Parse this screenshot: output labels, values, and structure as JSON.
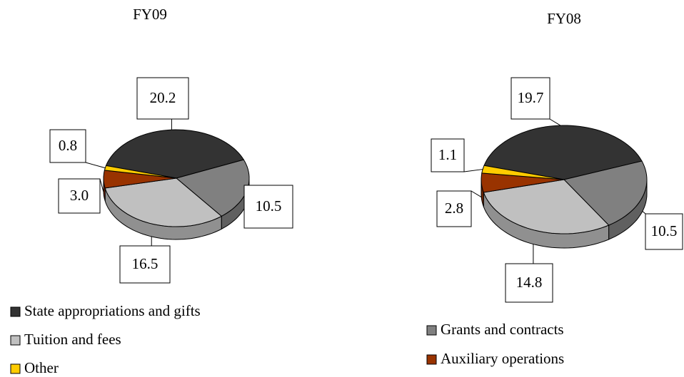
{
  "chart_data": [
    {
      "type": "pie",
      "title": "FY09",
      "categories": [
        "State appropriations and gifts",
        "Grants and contracts",
        "Tuition and fees",
        "Auxiliary operations",
        "Other"
      ],
      "values": [
        20.2,
        10.5,
        16.5,
        3.0,
        0.8
      ],
      "value_labels": [
        "20.2",
        "10.5",
        "16.5",
        "3.0",
        "0.8"
      ],
      "colors": [
        "#333333",
        "#808080",
        "#c0c0c0",
        "#993300",
        "#ffcc00"
      ]
    },
    {
      "type": "pie",
      "title": "FY08",
      "categories": [
        "State appropriations and gifts",
        "Grants and contracts",
        "Tuition and fees",
        "Auxiliary operations",
        "Other"
      ],
      "values": [
        19.7,
        10.5,
        14.8,
        2.8,
        1.1
      ],
      "value_labels": [
        "19.7",
        "10.5",
        "14.8",
        "2.8",
        "1.1"
      ],
      "colors": [
        "#333333",
        "#808080",
        "#c0c0c0",
        "#993300",
        "#ffcc00"
      ]
    }
  ]
}
